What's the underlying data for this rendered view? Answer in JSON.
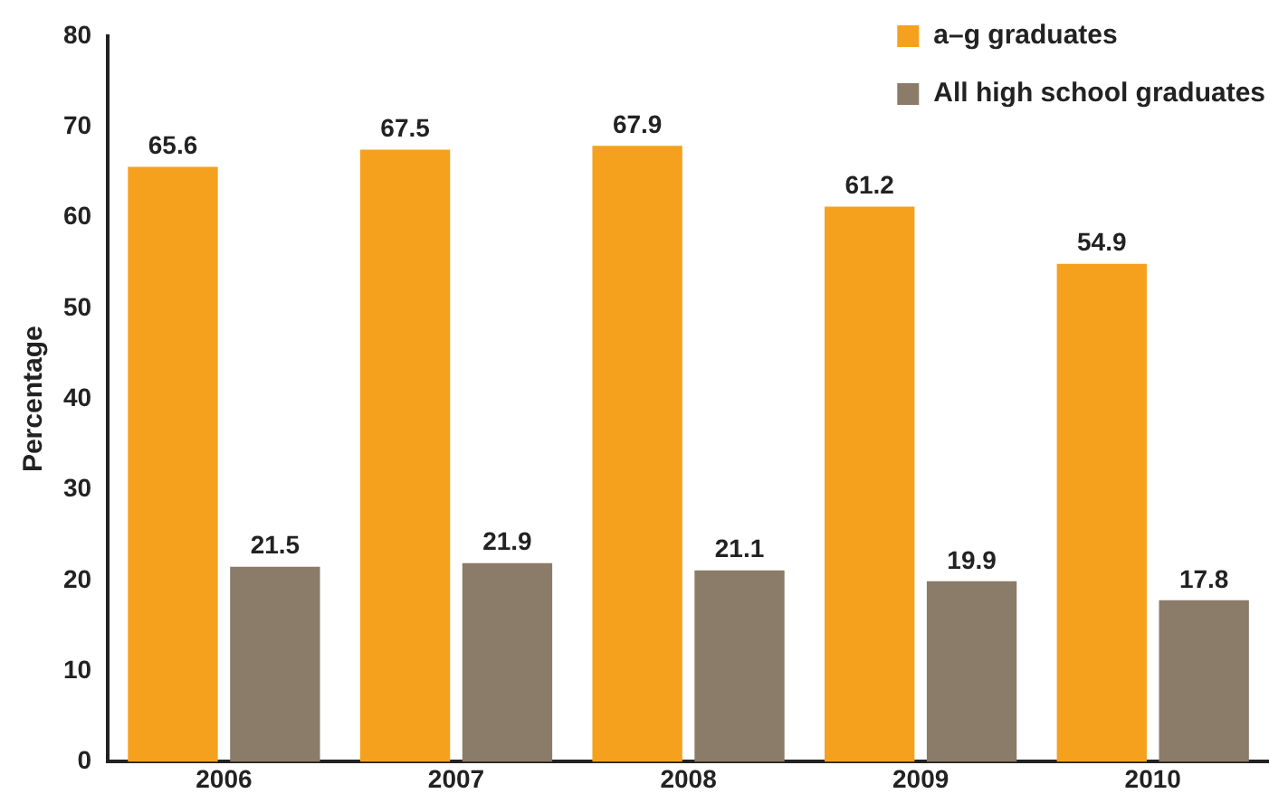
{
  "chart_data": {
    "type": "bar",
    "ylabel": "Percentage",
    "categories": [
      "2006",
      "2007",
      "2008",
      "2009",
      "2010"
    ],
    "series": [
      {
        "name": "a–g graduates",
        "color": "#f5a11d",
        "values": [
          65.6,
          67.5,
          67.9,
          61.2,
          54.9
        ]
      },
      {
        "name": "All high school graduates",
        "color": "#8b7b69",
        "values": [
          21.5,
          21.9,
          21.1,
          19.9,
          17.8
        ]
      }
    ],
    "ylim": [
      0,
      80
    ],
    "yticks": [
      0,
      10,
      20,
      30,
      40,
      50,
      60,
      70,
      80
    ],
    "grid": false,
    "legend": "top right",
    "data_labels": true
  }
}
